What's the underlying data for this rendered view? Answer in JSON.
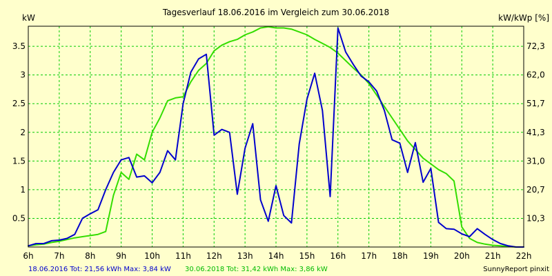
{
  "chart_data": {
    "type": "line",
    "title": "Tagesverlauf 18.06.2016 im Vergleich zum 30.06.2018",
    "ylabel_left": "kW",
    "ylabel_right": "kW/kWp [%]",
    "xlim": [
      6,
      22
    ],
    "ylim": [
      0,
      3.85
    ],
    "grid": true,
    "x_tick_labels": [
      "6h",
      "7h",
      "8h",
      "9h",
      "10h",
      "11h",
      "12h",
      "13h",
      "14h",
      "15h",
      "16h",
      "17h",
      "18h",
      "19h",
      "20h",
      "21h",
      "22h"
    ],
    "y_ticks_left": [
      0.5,
      1,
      1.5,
      2,
      2.5,
      3,
      3.5
    ],
    "y_tick_labels_left": [
      "0.5",
      "1",
      "1.5",
      "2",
      "2.5",
      "3",
      "3.5"
    ],
    "y_tick_labels_right": [
      "10,3",
      "20,7",
      "31,0",
      "41,3",
      "51,7",
      "62,0",
      "72,3"
    ],
    "series": [
      {
        "name": "18.06.2016",
        "color": "#0000cc",
        "x": [
          6.0,
          6.25,
          6.5,
          6.75,
          7.0,
          7.25,
          7.5,
          7.75,
          8.0,
          8.25,
          8.5,
          8.75,
          9.0,
          9.25,
          9.5,
          9.75,
          10.0,
          10.25,
          10.5,
          10.75,
          11.0,
          11.25,
          11.5,
          11.75,
          12.0,
          12.25,
          12.5,
          12.75,
          13.0,
          13.25,
          13.5,
          13.75,
          14.0,
          14.25,
          14.5,
          14.75,
          15.0,
          15.25,
          15.5,
          15.75,
          16.0,
          16.25,
          16.5,
          16.75,
          17.0,
          17.25,
          17.5,
          17.75,
          18.0,
          18.25,
          18.5,
          18.75,
          19.0,
          19.25,
          19.5,
          19.75,
          20.0,
          20.25,
          20.5,
          20.75,
          21.0,
          21.25,
          21.5,
          21.75,
          22.0
        ],
        "values": [
          0.02,
          0.06,
          0.06,
          0.11,
          0.12,
          0.15,
          0.22,
          0.5,
          0.58,
          0.65,
          1.0,
          1.3,
          1.52,
          1.56,
          1.22,
          1.24,
          1.12,
          1.3,
          1.68,
          1.52,
          2.5,
          3.05,
          3.28,
          3.36,
          1.95,
          2.05,
          2.0,
          0.92,
          1.72,
          2.15,
          0.82,
          0.45,
          1.07,
          0.55,
          0.42,
          1.8,
          2.58,
          3.03,
          2.38,
          0.88,
          3.82,
          3.4,
          3.18,
          2.98,
          2.88,
          2.72,
          2.38,
          1.87,
          1.81,
          1.3,
          1.82,
          1.13,
          1.37,
          0.43,
          0.32,
          0.31,
          0.23,
          0.18,
          0.32,
          0.22,
          0.13,
          0.06,
          0.02,
          0.0,
          0.0
        ]
      },
      {
        "name": "30.06.2018",
        "color": "#33dd00",
        "x": [
          6.0,
          6.25,
          6.5,
          6.75,
          7.0,
          7.25,
          7.5,
          7.75,
          8.0,
          8.25,
          8.5,
          8.75,
          9.0,
          9.25,
          9.5,
          9.75,
          10.0,
          10.25,
          10.5,
          10.75,
          11.0,
          11.25,
          11.5,
          11.75,
          12.0,
          12.25,
          12.5,
          12.75,
          13.0,
          13.25,
          13.5,
          13.75,
          14.0,
          14.25,
          14.5,
          14.75,
          15.0,
          15.25,
          15.5,
          15.75,
          16.0,
          16.25,
          16.5,
          16.75,
          17.0,
          17.25,
          17.5,
          17.75,
          18.0,
          18.25,
          18.5,
          18.75,
          19.0,
          19.25,
          19.5,
          19.75,
          20.0,
          20.25,
          20.5,
          20.75,
          21.0,
          21.25,
          21.5,
          21.75,
          22.0
        ],
        "values": [
          0.02,
          0.04,
          0.05,
          0.08,
          0.1,
          0.13,
          0.16,
          0.18,
          0.2,
          0.22,
          0.27,
          0.9,
          1.3,
          1.18,
          1.62,
          1.52,
          2.0,
          2.25,
          2.55,
          2.6,
          2.62,
          2.88,
          3.08,
          3.2,
          3.42,
          3.52,
          3.58,
          3.62,
          3.7,
          3.75,
          3.82,
          3.84,
          3.82,
          3.82,
          3.8,
          3.75,
          3.7,
          3.62,
          3.55,
          3.48,
          3.38,
          3.25,
          3.12,
          3.0,
          2.85,
          2.65,
          2.45,
          2.25,
          2.05,
          1.85,
          1.7,
          1.55,
          1.45,
          1.35,
          1.28,
          1.15,
          0.35,
          0.15,
          0.08,
          0.05,
          0.03,
          0.02,
          0.01,
          0.0,
          0.0
        ]
      }
    ],
    "footer": {
      "line1": "18.06.2016 Tot: 21,56 kWh Max: 3,84 kW",
      "line2": "30.06.2018 Tot: 31,42 kWh Max: 3,86 kW",
      "credit": "SunnyReport pinxit"
    },
    "colors": {
      "background": "#ffffcc",
      "grid": "#00cc00",
      "series1": "#0000cc",
      "series2": "#33dd00"
    }
  }
}
